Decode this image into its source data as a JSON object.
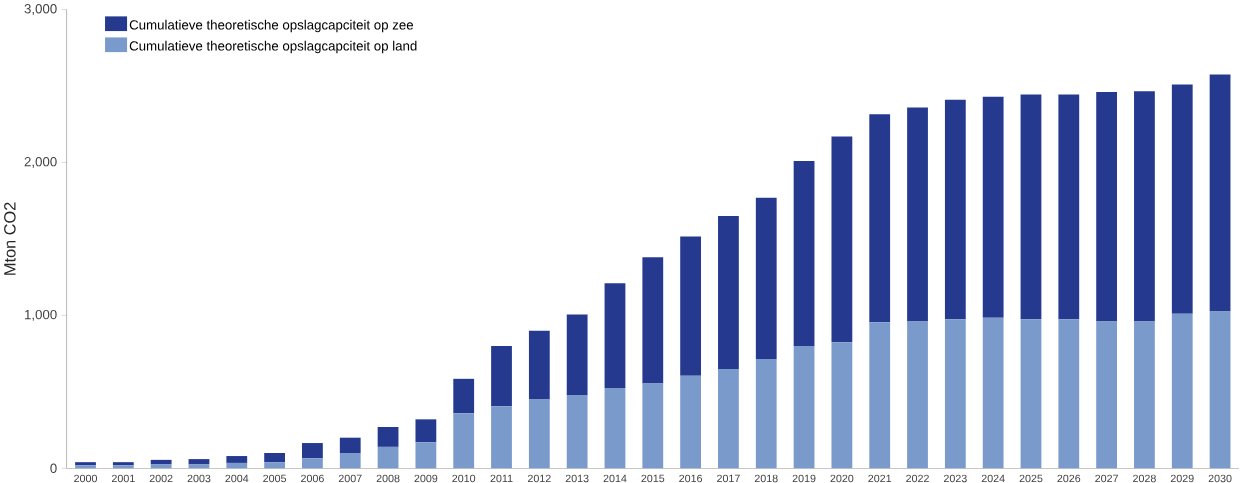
{
  "chart_data": {
    "type": "bar",
    "stacked": true,
    "ylabel": "Mton CO2",
    "categories": [
      "2000",
      "2001",
      "2002",
      "2003",
      "2004",
      "2005",
      "2006",
      "2007",
      "2008",
      "2009",
      "2010",
      "2011",
      "2012",
      "2013",
      "2014",
      "2015",
      "2016",
      "2017",
      "2018",
      "2019",
      "2020",
      "2021",
      "2022",
      "2023",
      "2024",
      "2025",
      "2026",
      "2027",
      "2028",
      "2029",
      "2030"
    ],
    "series": [
      {
        "name": "Cumulatieve theoretische opslagcapciteit op land",
        "color": "#7b9acc",
        "values": [
          20,
          20,
          25,
          25,
          35,
          40,
          65,
          100,
          140,
          170,
          360,
          405,
          450,
          480,
          525,
          555,
          605,
          650,
          715,
          800,
          825,
          955,
          960,
          975,
          985,
          975,
          975,
          960,
          960,
          1010,
          1025
        ]
      },
      {
        "name": "Cumulatieve theoretische opslagcapciteit op zee",
        "color": "#253a8f",
        "values": [
          20,
          20,
          30,
          35,
          45,
          60,
          100,
          100,
          130,
          150,
          225,
          395,
          450,
          525,
          685,
          825,
          910,
          1000,
          1055,
          1210,
          1345,
          1360,
          1400,
          1435,
          1445,
          1470,
          1470,
          1500,
          1505,
          1500,
          1550
        ]
      }
    ],
    "ylim": [
      0,
      3000
    ],
    "yticks": [
      0,
      {
        "value": 1000,
        "label": "1,000"
      },
      {
        "value": 2000,
        "label": "2,000"
      },
      {
        "value": 3000,
        "label": "3,000"
      }
    ],
    "legend": "top left",
    "grid": false
  }
}
